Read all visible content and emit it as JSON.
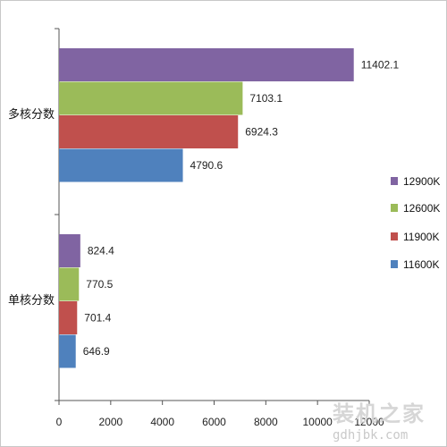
{
  "chart_data": {
    "type": "bar",
    "orientation": "horizontal",
    "categories": [
      "多核分数",
      "单核分数"
    ],
    "series": [
      {
        "name": "12900K",
        "color": "#8064a2",
        "values": [
          11402.1,
          824.4
        ]
      },
      {
        "name": "12600K",
        "color": "#9bbb59",
        "values": [
          7103.1,
          770.5
        ]
      },
      {
        "name": "11900K",
        "color": "#c0504d",
        "values": [
          6924.3,
          701.4
        ]
      },
      {
        "name": "11600K",
        "color": "#4f81bd",
        "values": [
          4790.6,
          646.9
        ]
      }
    ],
    "value_labels": [
      [
        "11402.1",
        "7103.1",
        "6924.3",
        "4790.6"
      ],
      [
        "824.4",
        "770.5",
        "701.4",
        "646.9"
      ]
    ],
    "xticks": [
      0,
      2000,
      4000,
      6000,
      8000,
      10000,
      12000
    ],
    "xlim": [
      0,
      12000
    ],
    "grid": false,
    "legend_position": "right",
    "title": "",
    "xlabel": "",
    "ylabel": ""
  },
  "watermark": {
    "cn": "装机之家",
    "en": "gdhjbk.com"
  }
}
